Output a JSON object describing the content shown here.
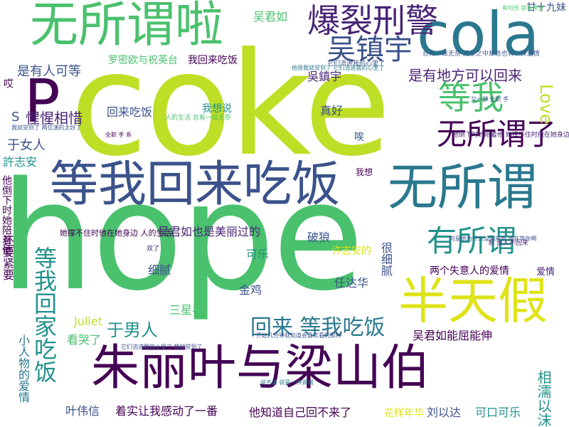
{
  "colors": {
    "background": "#ffffff",
    "lime": "#bddf26",
    "light_green": "#4ac16d",
    "teal": "#2a788e",
    "dark_purple": "#440154",
    "purple": "#482475",
    "blue": "#3b528b",
    "cyan": "#21918c",
    "yellow": "#dfe318"
  },
  "words": {
    "coke": "coke",
    "hope": "hope",
    "wusuoweila": "无所谓啦",
    "cola": "cola",
    "baolie_xingjing": "爆裂刑警",
    "wu_zhenyu": "吴镇宇",
    "p": "P",
    "dengwo_huilai_chifan": "等我回来吃饭",
    "wusuowei": "无所谓",
    "zhuliye": "朱丽叶与梁山伯",
    "bantianjia": "半天假",
    "youdifang": "是有地方可以回来",
    "dengwo": "等我",
    "wusuowei_le": "无所谓了",
    "yousuowei": "有所谓",
    "woyao_huijia": "等我回家吃饭",
    "huilai_dengwo": "回来  等我吃饭",
    "love": "Love",
    "huilai_chifan": "回来吃饭",
    "xixi": "惺惺相惜",
    "yu_nvren": "于女人",
    "yu_nanren": "于男人",
    "xiaorenwu": "小人物的爱情",
    "ye_weixin": "叶伟信",
    "zhuoshi": "着实让我感动了一番",
    "tazhidao": "他知道自己回不来了",
    "huayang": "花样年华",
    "liu_yida": "刘以达",
    "kekou": "可口可乐",
    "xiangru": "相濡以沫",
    "wujunru_nengqu": "吴君如能屈能伸",
    "ren_dahua": "任达华",
    "wujunru": "吴君如",
    "shiyourenkedeng": "是有人可等",
    "luomi": "罗密欧与祝英台",
    "wohuilai": "我回来吃饭",
    "ganshijiu": "甘十九妹",
    "wu_zhenyu_trad": "吳鎮宇",
    "zhenhao": "真好",
    "keyue": "可乐",
    "jinji": "金鸡",
    "xini": "细腻",
    "henxini": "很细腻",
    "liangge": "两个失意人的爱情",
    "aiqing": "爱情",
    "sanxingban": "三星半",
    "juliet": "Juliet",
    "kankule": "看哭了",
    "polang": "破狼",
    "xu_zhian_trad": "許志安",
    "xu_zhian": "许志安的",
    "wujunru_meili": "吴君如也是美丽过的",
    "tachengbu": "她撑不住时他在她身边  人的生活",
    "womxiang": "我想说",
    "woxiang": "我想",
    "ai": "唉",
    "s": "S",
    "ai2": "哎",
    "haiyao_jinyao": "还要紧要",
    "tadao": "他倒下时她陪着他",
    "youyou": "又一部  全职  手",
    "small_1": "总有一丝无奈  无奈之中却总也有一抹温情",
    "small_2": "他倒下时她陪着他  她撑不住时他在她身边",
    "small_3": "人的生活  总有一丝无奈",
    "small_4": "可是他为什么没回来啊  她在等你啊",
    "small_5": "它们流进我的心里了",
    "small_6": "开始几分钟就知道会喜欢看的那种",
    "small_7": "系  良人不回来",
    "small_8": "双了",
    "small_9": "它们流进我的心里了  我就觉到了",
    "small_10": "说不清  就是一种调调",
    "small_11": "有可乐  就有希望",
    "small_12": "我就觉到了  两位演的太好了",
    "small_13": "全职    手  系",
    "small_14": "他很我就觉到了  它们流进我的心里了"
  }
}
